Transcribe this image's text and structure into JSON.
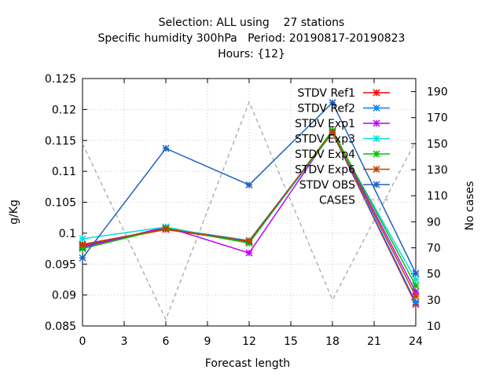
{
  "title_lines": [
    "Selection: ALL using    27 stations",
    "Specific humidity 300hPa   Period: 20190817-20190823",
    "Hours: {12}"
  ],
  "chart_data": {
    "type": "line",
    "xlabel": "Forecast length",
    "ylabel": "g/Kg",
    "y2label": "No cases",
    "xlim": [
      0,
      24
    ],
    "ylim": [
      0.085,
      0.125
    ],
    "y2lim": [
      10,
      200
    ],
    "xticks": [
      0,
      3,
      6,
      9,
      12,
      15,
      18,
      21,
      24
    ],
    "yticks": [
      0.085,
      0.09,
      0.095,
      0.1,
      0.105,
      0.11,
      0.115,
      0.12,
      0.125
    ],
    "y2ticks": [
      10,
      30,
      50,
      70,
      90,
      110,
      130,
      150,
      170,
      190
    ],
    "ytick_labels": [
      "0.085",
      "0.09",
      "0.095",
      "0.1",
      "0.105",
      "0.11",
      "0.115",
      "0.12",
      "0.125"
    ],
    "x": [
      0,
      6,
      12,
      18,
      24
    ],
    "legend_position": "top-right",
    "series": [
      {
        "name": "STDV Ref1",
        "color": "#ff0000",
        "values": [
          0.098,
          0.1006,
          0.0986,
          0.1162,
          0.0885
        ]
      },
      {
        "name": "STDV Ref2",
        "color": "#0080ff",
        "values": [
          0.0978,
          0.1008,
          0.0988,
          0.1163,
          0.0888
        ]
      },
      {
        "name": "STDV Exp1",
        "color": "#c000ff",
        "values": [
          0.0977,
          0.101,
          0.0968,
          0.1165,
          0.0905
        ]
      },
      {
        "name": "STDV Exp3",
        "color": "#00e0e0",
        "values": [
          0.0991,
          0.101,
          0.0984,
          0.1162,
          0.0925
        ]
      },
      {
        "name": "STDV Exp4",
        "color": "#00c000",
        "values": [
          0.0975,
          0.1008,
          0.0984,
          0.1166,
          0.0915
        ]
      },
      {
        "name": "STDV Exp6",
        "color": "#c04000",
        "values": [
          0.0982,
          0.1007,
          0.0987,
          0.1163,
          0.0898
        ]
      },
      {
        "name": "STDV OBS",
        "color": "#2060c0",
        "values": [
          0.096,
          0.1137,
          0.1078,
          0.1211,
          0.0935
        ]
      },
      {
        "name": "CASES",
        "color": "#a0a0a0",
        "axis": "y2",
        "values": [
          150,
          15,
          182,
          30,
          152
        ]
      }
    ]
  }
}
